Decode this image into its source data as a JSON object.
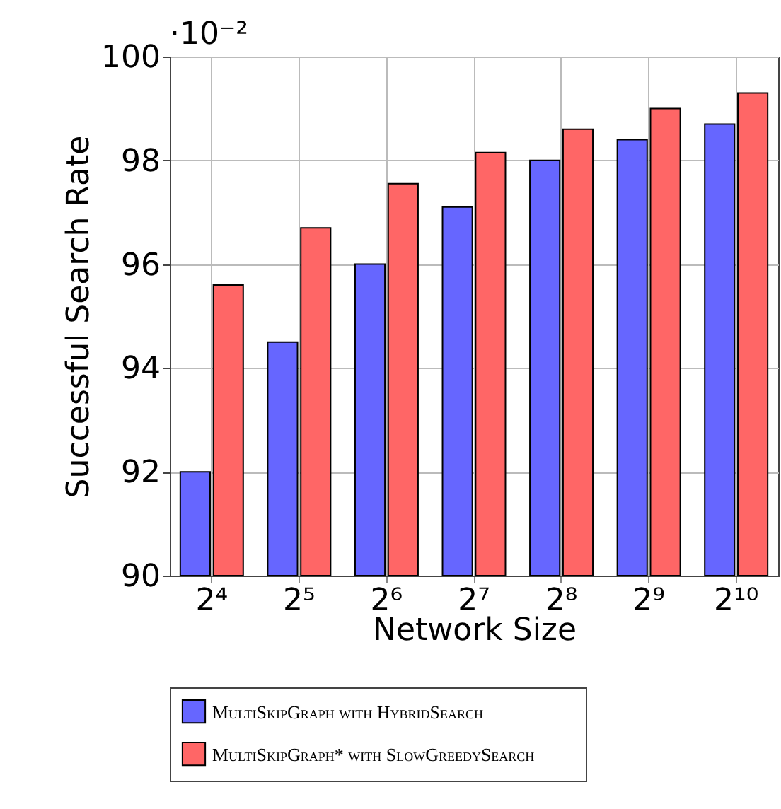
{
  "chart_data": {
    "type": "bar",
    "xlabel": "Network Size",
    "ylabel": "Successful Search Rate",
    "annotations": [
      "·10⁻²"
    ],
    "categories": [
      "2⁴",
      "2⁵",
      "2⁶",
      "2⁷",
      "2⁸",
      "2⁹",
      "2¹⁰"
    ],
    "series": [
      {
        "name": "MultiSkipGraph with HybridSearch",
        "color": "#6666ff",
        "values": [
          92.0,
          94.5,
          96.0,
          97.1,
          98.0,
          98.4,
          98.7
        ]
      },
      {
        "name": "MultiSkipGraph* with SlowGreedySearch",
        "color": "#ff6666",
        "values": [
          95.6,
          96.7,
          97.55,
          98.15,
          98.6,
          99.0,
          99.3
        ]
      }
    ],
    "ylim": [
      90,
      100
    ],
    "yticks": [
      90,
      92,
      94,
      96,
      98,
      100
    ],
    "grid": true,
    "legend": "bottom"
  }
}
